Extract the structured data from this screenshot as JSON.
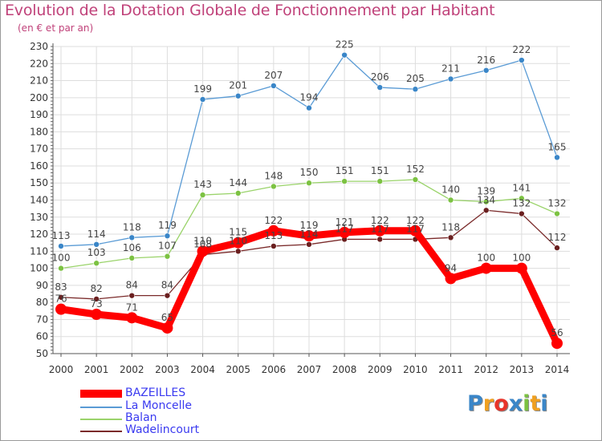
{
  "title": "Evolution de la Dotation Globale de Fonctionnement par Habitant",
  "subtitle": "(en € et par an)",
  "logo": {
    "text": "Proxiti",
    "letters": [
      "P",
      "r",
      "o",
      "x",
      "i",
      "t",
      "i"
    ]
  },
  "colors": {
    "title": "#c0427a",
    "axis_text": "#333333",
    "grid": "#dddddd",
    "legend_text": "#3a3af0"
  },
  "chart_data": {
    "type": "line",
    "title": "Evolution de la Dotation Globale de Fonctionnement par Habitant",
    "subtitle": "(en € et par an)",
    "xlabel": "",
    "ylabel": "",
    "ylim": [
      50,
      230
    ],
    "yticks": [
      50,
      60,
      70,
      80,
      90,
      100,
      110,
      120,
      130,
      140,
      150,
      160,
      170,
      180,
      190,
      200,
      210,
      220,
      230
    ],
    "categories": [
      "2000",
      "2001",
      "2002",
      "2003",
      "2004",
      "2005",
      "2006",
      "2007",
      "2008",
      "2009",
      "2010",
      "2011",
      "2012",
      "2013",
      "2014"
    ],
    "grid": true,
    "legend_position": "bottom-left",
    "series": [
      {
        "name": "BAZEILLES",
        "color": "#ff0000",
        "emphasis": true,
        "values": [
          76,
          73,
          71,
          65,
          110,
          115,
          122,
          119,
          121,
          122,
          122,
          94,
          100,
          100,
          56
        ],
        "labels": [
          "76",
          "73",
          "71",
          "65",
          "110",
          "115",
          "122",
          "119",
          "121",
          "122",
          "122",
          "94",
          "100",
          "100",
          "56"
        ]
      },
      {
        "name": "La Moncelle",
        "color": "#5a9bd5",
        "marker": "#3a86c8",
        "values": [
          113,
          114,
          118,
          119,
          199,
          201,
          207,
          194,
          225,
          206,
          205,
          211,
          216,
          222,
          165
        ],
        "labels": [
          "113",
          "114",
          "118",
          "119",
          "199",
          "201",
          "207",
          "194",
          "225",
          "206",
          "205",
          "211",
          "216",
          "222",
          "165"
        ]
      },
      {
        "name": "Balan",
        "color": "#9ad36a",
        "marker": "#7cc242",
        "values": [
          100,
          103,
          106,
          107,
          143,
          144,
          148,
          150,
          151,
          151,
          152,
          140,
          139,
          141,
          132
        ],
        "labels": [
          "100",
          "103",
          "106",
          "107",
          "143",
          "144",
          "148",
          "150",
          "151",
          "151",
          "152",
          "140",
          "139",
          "141",
          "132"
        ]
      },
      {
        "name": "Wadelincourt",
        "color": "#7a2a2a",
        "marker": "#6a1f1f",
        "values": [
          83,
          82,
          84,
          84,
          108,
          110,
          113,
          114,
          117,
          117,
          117,
          118,
          134,
          132,
          112
        ],
        "labels": [
          "83",
          "82",
          "84",
          "84",
          "108",
          "110",
          "113",
          "114",
          "117",
          "117",
          "117",
          "118",
          "134",
          "132",
          "112"
        ]
      }
    ]
  }
}
